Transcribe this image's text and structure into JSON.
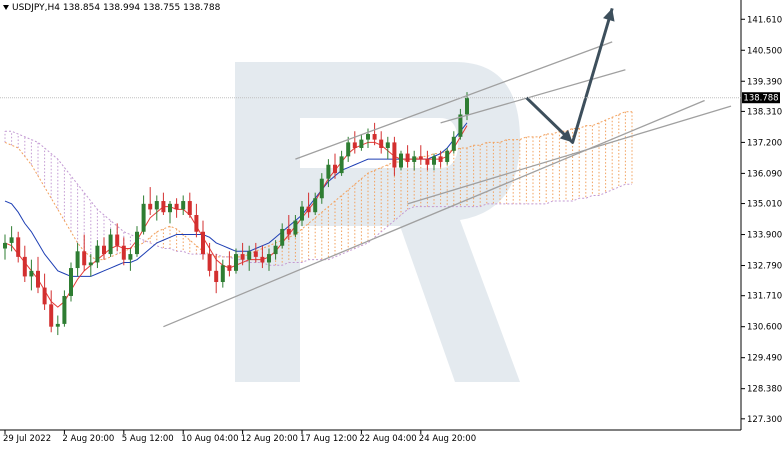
{
  "header": {
    "symbol": "USDJPY,H4",
    "open": "138.854",
    "high": "138.994",
    "low": "138.755",
    "close": "138.788"
  },
  "current_price_label": "138.788",
  "colors": {
    "bull_candle": "#2e7d32",
    "bear_candle": "#d32f2f",
    "tenkan": "#e53935",
    "kijun": "#1e3fb4",
    "cloud_bull": "#f2a15e",
    "cloud_bear": "#c39ad3",
    "channel": "#a0a0a0",
    "forecast_arrow": "#3d4f5c",
    "watermark": "#dbe3ea"
  },
  "chart_data": {
    "type": "candlestick",
    "symbol": "USDJPY",
    "timeframe": "H4",
    "y_ticks": [
      "141.610",
      "140.500",
      "139.390",
      "138.310",
      "137.200",
      "136.090",
      "135.010",
      "133.900",
      "132.790",
      "131.710",
      "130.600",
      "129.490",
      "128.380",
      "127.300"
    ],
    "x_ticks": [
      "29 Jul 2022",
      "2 Aug 20:00",
      "5 Aug 12:00",
      "10 Aug 04:00",
      "12 Aug 20:00",
      "17 Aug 12:00",
      "22 Aug 04:00",
      "24 Aug 20:00"
    ],
    "ylim": [
      126.9,
      142.3
    ],
    "ohlc": [
      [
        133.4,
        133.9,
        133.0,
        133.6
      ],
      [
        133.6,
        134.2,
        133.3,
        133.8
      ],
      [
        133.8,
        134.0,
        132.9,
        133.1
      ],
      [
        133.1,
        133.5,
        132.2,
        132.4
      ],
      [
        132.4,
        133.0,
        131.9,
        132.6
      ],
      [
        132.6,
        133.1,
        131.8,
        132.0
      ],
      [
        132.0,
        132.5,
        131.2,
        131.4
      ],
      [
        131.4,
        131.9,
        130.4,
        130.6
      ],
      [
        130.6,
        131.0,
        130.3,
        130.7
      ],
      [
        130.7,
        131.9,
        130.6,
        131.7
      ],
      [
        131.7,
        132.9,
        131.5,
        132.7
      ],
      [
        132.7,
        133.6,
        132.4,
        133.3
      ],
      [
        133.3,
        133.9,
        132.6,
        132.8
      ],
      [
        132.8,
        133.2,
        132.4,
        132.9
      ],
      [
        132.9,
        133.7,
        132.7,
        133.5
      ],
      [
        133.5,
        133.8,
        133.0,
        133.2
      ],
      [
        133.2,
        134.1,
        133.1,
        133.9
      ],
      [
        133.9,
        134.3,
        133.3,
        133.5
      ],
      [
        133.5,
        133.8,
        132.8,
        133.0
      ],
      [
        133.0,
        133.4,
        132.6,
        133.2
      ],
      [
        133.2,
        134.2,
        133.1,
        134.0
      ],
      [
        134.0,
        135.3,
        133.9,
        135.0
      ],
      [
        135.0,
        135.6,
        134.6,
        134.8
      ],
      [
        134.8,
        135.3,
        134.4,
        135.1
      ],
      [
        135.1,
        135.4,
        134.6,
        134.7
      ],
      [
        134.7,
        135.1,
        134.3,
        135.0
      ],
      [
        135.0,
        135.2,
        134.5,
        134.8
      ],
      [
        134.8,
        135.3,
        134.6,
        135.1
      ],
      [
        135.1,
        135.4,
        134.5,
        134.6
      ],
      [
        134.6,
        135.0,
        133.8,
        134.0
      ],
      [
        134.0,
        134.4,
        133.0,
        133.2
      ],
      [
        133.2,
        133.6,
        132.4,
        132.6
      ],
      [
        132.6,
        133.2,
        131.8,
        132.2
      ],
      [
        132.2,
        133.0,
        132.0,
        132.8
      ],
      [
        132.8,
        133.3,
        132.4,
        132.6
      ],
      [
        132.6,
        133.4,
        132.5,
        133.2
      ],
      [
        133.2,
        133.6,
        132.8,
        133.0
      ],
      [
        133.0,
        133.5,
        132.6,
        133.3
      ],
      [
        133.3,
        133.6,
        132.9,
        133.1
      ],
      [
        133.1,
        133.5,
        132.7,
        132.9
      ],
      [
        132.9,
        133.4,
        132.6,
        133.2
      ],
      [
        133.2,
        133.7,
        133.0,
        133.5
      ],
      [
        133.5,
        134.3,
        133.4,
        134.1
      ],
      [
        134.1,
        134.6,
        133.7,
        133.9
      ],
      [
        133.9,
        134.6,
        133.8,
        134.4
      ],
      [
        134.4,
        135.1,
        134.2,
        134.9
      ],
      [
        134.9,
        135.4,
        134.5,
        134.7
      ],
      [
        134.7,
        135.4,
        134.6,
        135.2
      ],
      [
        135.2,
        136.1,
        135.0,
        135.9
      ],
      [
        135.9,
        136.6,
        135.6,
        136.4
      ],
      [
        136.4,
        136.8,
        135.9,
        136.1
      ],
      [
        136.1,
        136.9,
        136.0,
        136.7
      ],
      [
        136.7,
        137.4,
        136.5,
        137.2
      ],
      [
        137.2,
        137.6,
        136.8,
        137.0
      ],
      [
        137.0,
        137.5,
        136.9,
        137.3
      ],
      [
        137.3,
        137.7,
        137.0,
        137.5
      ],
      [
        137.5,
        137.9,
        137.1,
        137.3
      ],
      [
        137.3,
        137.6,
        136.8,
        137.0
      ],
      [
        137.0,
        137.4,
        136.6,
        137.2
      ],
      [
        137.2,
        137.4,
        136.0,
        136.3
      ],
      [
        136.3,
        136.9,
        136.2,
        136.8
      ],
      [
        136.8,
        137.1,
        136.3,
        136.5
      ],
      [
        136.5,
        136.9,
        136.2,
        136.7
      ],
      [
        136.7,
        137.1,
        136.4,
        136.6
      ],
      [
        136.6,
        136.9,
        136.2,
        136.4
      ],
      [
        136.4,
        136.8,
        136.2,
        136.7
      ],
      [
        136.7,
        136.9,
        136.3,
        136.5
      ],
      [
        136.5,
        137.0,
        136.4,
        136.9
      ],
      [
        136.9,
        137.6,
        136.8,
        137.4
      ],
      [
        137.4,
        138.4,
        137.3,
        138.2
      ],
      [
        138.2,
        139.0,
        138.0,
        138.8
      ]
    ],
    "tenkan": [
      133.6,
      133.5,
      133.2,
      132.9,
      132.6,
      132.3,
      131.9,
      131.5,
      131.3,
      131.5,
      131.9,
      132.3,
      132.6,
      132.8,
      133.0,
      133.2,
      133.4,
      133.5,
      133.4,
      133.4,
      133.7,
      134.1,
      134.5,
      134.7,
      134.9,
      134.9,
      134.8,
      134.8,
      134.6,
      134.2,
      133.8,
      133.4,
      133.0,
      132.8,
      132.7,
      132.8,
      132.9,
      133.0,
      133.0,
      133.0,
      133.1,
      133.3,
      133.6,
      133.9,
      134.2,
      134.5,
      134.8,
      135.1,
      135.5,
      135.9,
      136.2,
      136.5,
      136.8,
      137.0,
      137.1,
      137.2,
      137.2,
      137.1,
      136.9,
      136.7,
      136.6,
      136.6,
      136.6,
      136.6,
      136.6,
      136.6,
      136.6,
      136.7,
      137.0,
      137.4,
      137.8
    ],
    "kijun": [
      135.1,
      135.0,
      134.7,
      134.3,
      134.0,
      133.6,
      133.2,
      132.9,
      132.6,
      132.5,
      132.4,
      132.4,
      132.4,
      132.4,
      132.5,
      132.6,
      132.7,
      132.8,
      132.9,
      132.9,
      133.0,
      133.2,
      133.4,
      133.6,
      133.7,
      133.8,
      133.9,
      133.9,
      133.9,
      133.9,
      133.9,
      133.8,
      133.6,
      133.5,
      133.4,
      133.3,
      133.3,
      133.3,
      133.4,
      133.5,
      133.6,
      133.8,
      134.0,
      134.2,
      134.4,
      134.6,
      134.9,
      135.2,
      135.5,
      135.8,
      136.0,
      136.2,
      136.3,
      136.4,
      136.5,
      136.6,
      136.6,
      136.6,
      136.6,
      136.6,
      136.6,
      136.6,
      136.6,
      136.6,
      136.6,
      136.7,
      136.8,
      137.0,
      137.3,
      137.6,
      137.9
    ],
    "channels": [
      {
        "name": "upper-a",
        "x": [
          44,
          92
        ],
        "y": [
          136.6,
          140.8
        ]
      },
      {
        "name": "upper-b",
        "x": [
          66,
          94
        ],
        "y": [
          137.9,
          139.8
        ]
      },
      {
        "name": "lower-a",
        "x": [
          24,
          106
        ],
        "y": [
          130.6,
          138.7
        ]
      },
      {
        "name": "lower-b",
        "x": [
          61,
          110
        ],
        "y": [
          135.0,
          138.5
        ]
      }
    ],
    "forecast": [
      [
        79,
        138.8
      ],
      [
        86,
        137.2
      ],
      [
        92,
        142.0
      ]
    ],
    "cloud": {
      "x_start": 0,
      "span_a": [
        137.2,
        137.1,
        137.0,
        136.7,
        136.4,
        136.0,
        135.6,
        135.2,
        134.8,
        134.4,
        134.0,
        133.6,
        133.3,
        133.1,
        133.0,
        133.0,
        133.1,
        133.2,
        133.3,
        133.4,
        133.5,
        133.6,
        133.8,
        134.0,
        134.1,
        134.2,
        134.1,
        133.9,
        133.7,
        133.5,
        133.3,
        133.2,
        133.1,
        133.1,
        133.1,
        133.1,
        133.1,
        133.2,
        133.3,
        133.4,
        133.5,
        133.6,
        133.7,
        133.8,
        133.9,
        134.1,
        134.3,
        134.5,
        134.7,
        134.9,
        135.1,
        135.3,
        135.5,
        135.7,
        135.9,
        136.1,
        136.2,
        136.3,
        136.4,
        136.5,
        136.5,
        136.6,
        136.6,
        136.7,
        136.7,
        136.8,
        136.8,
        136.9,
        136.9,
        137.0,
        137.0,
        137.1,
        137.1,
        137.2,
        137.2,
        137.2,
        137.3,
        137.3,
        137.3,
        137.4,
        137.4,
        137.4,
        137.5,
        137.5,
        137.6,
        137.6,
        137.7,
        137.7,
        137.8,
        137.8,
        137.9,
        138.0,
        138.1,
        138.2,
        138.3,
        138.3
      ],
      "span_b": [
        137.6,
        137.6,
        137.5,
        137.4,
        137.3,
        137.2,
        137.0,
        136.8,
        136.6,
        136.3,
        136.0,
        135.7,
        135.4,
        135.1,
        134.8,
        134.6,
        134.4,
        134.2,
        134.0,
        133.9,
        133.8,
        133.7,
        133.6,
        133.5,
        133.4,
        133.4,
        133.3,
        133.3,
        133.2,
        133.2,
        133.2,
        133.2,
        133.2,
        133.1,
        133.1,
        133.0,
        133.0,
        132.9,
        132.9,
        132.9,
        132.8,
        132.8,
        132.8,
        132.9,
        132.9,
        132.9,
        133.0,
        133.0,
        133.0,
        133.0,
        133.1,
        133.2,
        133.3,
        133.4,
        133.5,
        133.6,
        133.8,
        134.0,
        134.2,
        134.4,
        134.6,
        134.8,
        134.9,
        134.9,
        134.9,
        134.9,
        134.9,
        134.9,
        134.9,
        134.9,
        134.9,
        134.9,
        134.9,
        135.0,
        135.0,
        135.0,
        135.0,
        135.0,
        135.0,
        135.0,
        135.0,
        135.0,
        135.0,
        135.1,
        135.1,
        135.1,
        135.1,
        135.2,
        135.2,
        135.3,
        135.3,
        135.4,
        135.5,
        135.6,
        135.7,
        135.7
      ]
    }
  }
}
